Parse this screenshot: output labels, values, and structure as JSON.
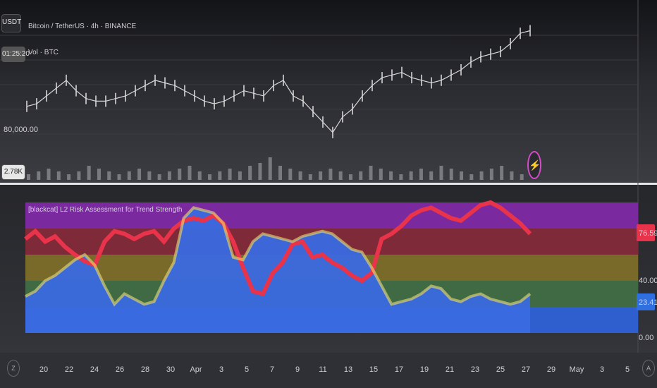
{
  "header": {
    "symbol_button": "USDT",
    "title": "Bitcoin / TetherUS · 4h · BINANCE",
    "volume_label": "Vol · BTC",
    "countdown": "01:25:20",
    "price_tick": "80,000.00",
    "volume_value": "2.78K"
  },
  "indicator": {
    "title": "[blackcat] L2 Risk Assessment for Trend Strength",
    "badge_value": "76.59",
    "badge_value_blue": "23.41",
    "badge_color_red": "#e8334a",
    "badge_color_blue": "#2f6fe0"
  },
  "time_axis": {
    "labels": [
      "20",
      "22",
      "24",
      "26",
      "28",
      "30",
      "Apr",
      "3",
      "5",
      "7",
      "9",
      "11",
      "13",
      "15",
      "17",
      "19",
      "21",
      "23",
      "25",
      "27",
      "29",
      "May",
      "3",
      "5"
    ],
    "left_icon": "Z",
    "right_icon": "A"
  },
  "chart_data": [
    {
      "type": "line",
      "title": "Bitcoin / TetherUS · 4h · BINANCE",
      "ytick_labels": [
        "80,000.00"
      ],
      "series": [
        {
          "values": [
            76,
            77,
            80,
            83,
            86,
            82,
            79,
            78,
            78,
            79,
            80,
            82,
            84,
            86,
            85,
            84,
            82,
            80,
            78,
            77,
            78,
            80,
            82,
            81,
            80,
            84,
            86,
            80,
            78,
            74,
            70,
            66,
            72,
            75,
            80,
            84,
            87,
            88,
            89,
            87,
            86,
            85,
            86,
            88,
            90,
            93,
            95,
            96,
            97,
            100,
            104,
            105
          ]
        }
      ]
    },
    {
      "type": "bar",
      "title": "Vol · BTC",
      "values": [
        2,
        3,
        4,
        3,
        2,
        3,
        5,
        4,
        3,
        2,
        3,
        4,
        3,
        2,
        3,
        4,
        5,
        3,
        2,
        3,
        4,
        3,
        5,
        6,
        8,
        5,
        4,
        3,
        2,
        3,
        4,
        3,
        2,
        3,
        5,
        4,
        3,
        2,
        3,
        4,
        3,
        5,
        4,
        3,
        2,
        3,
        4,
        5,
        3,
        2
      ],
      "value_label": "2.78K"
    },
    {
      "type": "area",
      "title": "[blackcat] L2 Risk Assessment for Trend Strength",
      "yticks": [
        "40.00",
        "0.00"
      ],
      "ylim": [
        0,
        100
      ],
      "zones": [
        {
          "from": 80,
          "to": 100,
          "color": "#7a2a9e"
        },
        {
          "from": 60,
          "to": 80,
          "color": "#7e2a38"
        },
        {
          "from": 40,
          "to": 60,
          "color": "#7a6a2a"
        },
        {
          "from": 20,
          "to": 40,
          "color": "#3f6a44"
        }
      ],
      "series": [
        {
          "values": [
            72,
            78,
            70,
            74,
            66,
            60,
            55,
            52,
            70,
            78,
            76,
            72,
            76,
            78,
            70,
            80,
            86,
            88,
            86,
            90,
            84,
            70,
            50,
            32,
            30,
            46,
            54,
            68,
            70,
            58,
            60,
            54,
            50,
            44,
            40,
            46,
            72,
            76,
            82,
            90,
            94,
            96,
            92,
            88,
            86,
            92,
            98,
            100,
            96,
            90,
            84,
            76
          ]
        },
        {
          "values": [
            28,
            32,
            40,
            44,
            50,
            56,
            60,
            52,
            36,
            22,
            30,
            26,
            22,
            24,
            40,
            54,
            88,
            96,
            94,
            92,
            84,
            58,
            56,
            70,
            76,
            74,
            72,
            70,
            74,
            76,
            78,
            76,
            70,
            64,
            62,
            50,
            36,
            22,
            24,
            26,
            30,
            36,
            34,
            26,
            24,
            28,
            30,
            26,
            24,
            22,
            24,
            30
          ]
        }
      ]
    }
  ]
}
